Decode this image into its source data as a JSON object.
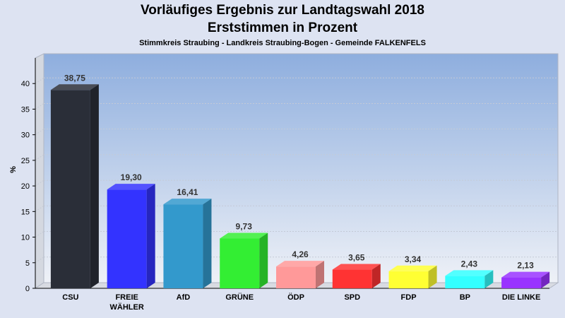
{
  "title": "Vorläufiges Ergebnis zur Landtagswahl 2018",
  "subtitle": "Erststimmen in Prozent",
  "subsubtitle": "Stimmkreis Straubing - Landkreis Straubing-Bogen - Gemeinde FALKENFELS",
  "chart_data": {
    "type": "bar",
    "title": "Vorläufiges Ergebnis zur Landtagswahl 2018",
    "subtitle": "Erststimmen in Prozent",
    "ylabel": "%",
    "xlabel": "",
    "ylim": [
      0,
      45
    ],
    "yticks": [
      0,
      5,
      10,
      15,
      20,
      25,
      30,
      35,
      40
    ],
    "categories": [
      [
        "CSU"
      ],
      [
        "FREIE",
        "WÄHLER"
      ],
      [
        "AfD"
      ],
      [
        "GRÜNE"
      ],
      [
        "ÖDP"
      ],
      [
        "SPD"
      ],
      [
        "FDP"
      ],
      [
        "BP"
      ],
      [
        "DIE LINKE"
      ]
    ],
    "values": [
      38.75,
      19.3,
      16.41,
      9.73,
      4.26,
      3.65,
      3.34,
      2.43,
      2.13
    ],
    "value_labels": [
      "38,75",
      "19,30",
      "16,41",
      "9,73",
      "4,26",
      "3,65",
      "3,34",
      "2,43",
      "2,13"
    ],
    "colors": [
      "#2a2e38",
      "#3333ff",
      "#3399cc",
      "#33ee33",
      "#ff9999",
      "#ff3333",
      "#ffff33",
      "#33ffff",
      "#9933ff"
    ],
    "grid": true,
    "legend": "none"
  }
}
